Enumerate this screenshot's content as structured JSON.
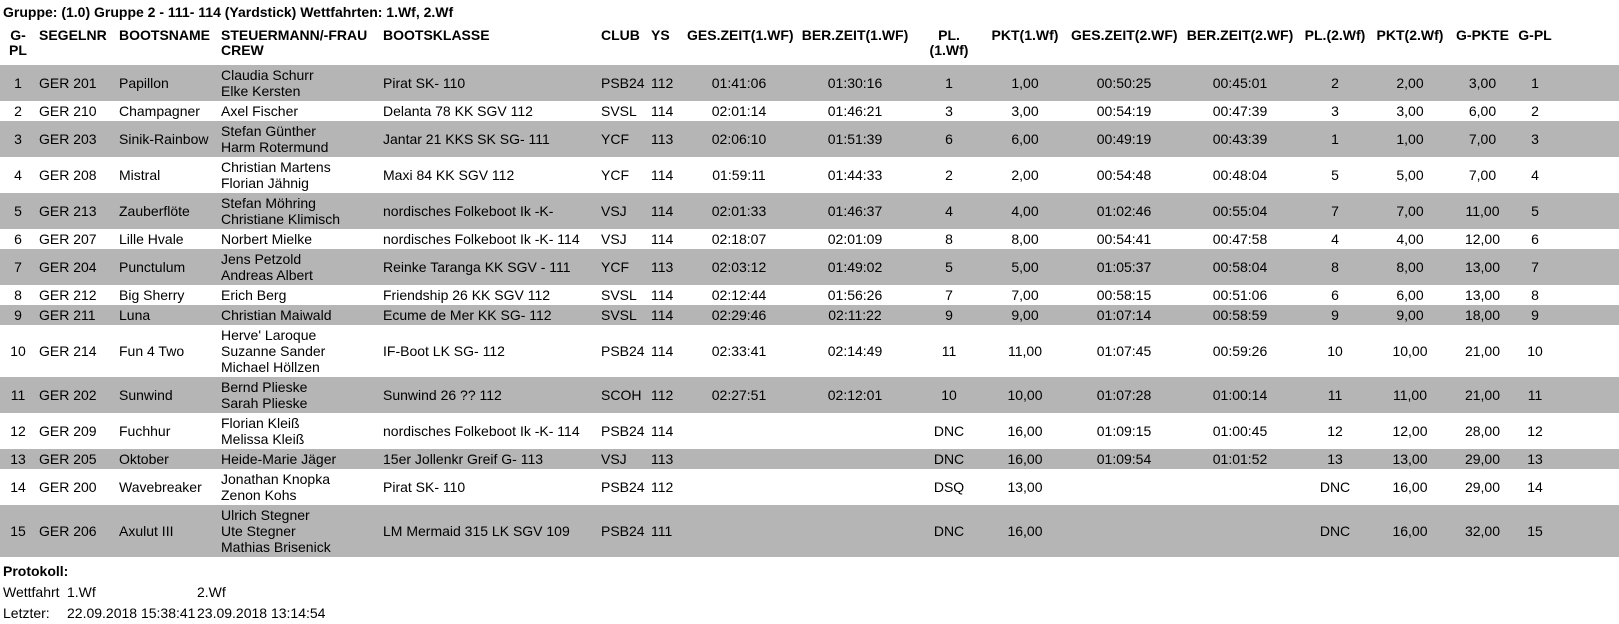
{
  "title": "Gruppe: (1.0) Gruppe 2 - 111- 114 (Yardstick) Wettfahrten: 1.Wf, 2.Wf",
  "colors": {
    "row_alt": "#b5b5b5",
    "row_base": "#ffffff",
    "text": "#000000"
  },
  "results_table": {
    "headers": [
      "G-PL",
      "SEGELNR",
      "BOOTSNAME",
      "STEUERMANN/-FRAU\nCREW",
      "BOOTSKLASSE",
      "CLUB",
      "YS",
      "GES.ZEIT(1.WF)",
      "BER.ZEIT(1.WF)",
      "PL.(1.Wf)",
      "PKT(1.Wf)",
      "GES.ZEIT(2.WF)",
      "BER.ZEIT(2.WF)",
      "PL.(2.Wf)",
      "PKT(2.Wf)",
      "G-PKTE",
      "G-PL"
    ],
    "rows": [
      [
        "1",
        "GER 201",
        "Papillon",
        "Claudia Schurr\nElke Kersten",
        "Pirat SK- 110",
        "PSB24",
        "112",
        "01:41:06",
        "01:30:16",
        "1",
        "1,00",
        "00:50:25",
        "00:45:01",
        "2",
        "2,00",
        "3,00",
        "1"
      ],
      [
        "2",
        "GER 210",
        "Champagner",
        "Axel Fischer",
        "Delanta 78 KK SGV 112",
        "SVSL",
        "114",
        "02:01:14",
        "01:46:21",
        "3",
        "3,00",
        "00:54:19",
        "00:47:39",
        "3",
        "3,00",
        "6,00",
        "2"
      ],
      [
        "3",
        "GER 203",
        "Sinik-Rainbow",
        "Stefan Günther\nHarm Rotermund",
        "Jantar 21 KKS SK SG- 111",
        "YCF",
        "113",
        "02:06:10",
        "01:51:39",
        "6",
        "6,00",
        "00:49:19",
        "00:43:39",
        "1",
        "1,00",
        "7,00",
        "3"
      ],
      [
        "4",
        "GER 208",
        "Mistral",
        "Christian Martens\nFlorian Jähnig",
        "Maxi 84 KK SGV 112",
        "YCF",
        "114",
        "01:59:11",
        "01:44:33",
        "2",
        "2,00",
        "00:54:48",
        "00:48:04",
        "5",
        "5,00",
        "7,00",
        "4"
      ],
      [
        "5",
        "GER 213",
        "Zauberflöte",
        "Stefan Möhring\nChristiane Klimisch",
        "nordisches Folkeboot Ik -K-",
        "VSJ",
        "114",
        "02:01:33",
        "01:46:37",
        "4",
        "4,00",
        "01:02:46",
        "00:55:04",
        "7",
        "7,00",
        "11,00",
        "5"
      ],
      [
        "6",
        "GER 207",
        "Lille Hvale",
        "Norbert Mielke",
        "nordisches Folkeboot Ik -K- 114",
        "VSJ",
        "114",
        "02:18:07",
        "02:01:09",
        "8",
        "8,00",
        "00:54:41",
        "00:47:58",
        "4",
        "4,00",
        "12,00",
        "6"
      ],
      [
        "7",
        "GER 204",
        "Punctulum",
        "Jens Petzold\nAndreas Albert",
        "Reinke Taranga KK SGV - 111",
        "YCF",
        "113",
        "02:03:12",
        "01:49:02",
        "5",
        "5,00",
        "01:05:37",
        "00:58:04",
        "8",
        "8,00",
        "13,00",
        "7"
      ],
      [
        "8",
        "GER 212",
        "Big Sherry",
        "Erich Berg",
        "Friendship 26 KK SGV 112",
        "SVSL",
        "114",
        "02:12:44",
        "01:56:26",
        "7",
        "7,00",
        "00:58:15",
        "00:51:06",
        "6",
        "6,00",
        "13,00",
        "8"
      ],
      [
        "9",
        "GER 211",
        "Luna",
        "Christian Maiwald",
        "Ecume de Mer KK SG- 112",
        "SVSL",
        "114",
        "02:29:46",
        "02:11:22",
        "9",
        "9,00",
        "01:07:14",
        "00:58:59",
        "9",
        "9,00",
        "18,00",
        "9"
      ],
      [
        "10",
        "GER 214",
        "Fun 4 Two",
        "Herve' Laroque\nSuzanne Sander\nMichael Höllzen",
        "IF-Boot LK SG- 112",
        "PSB24",
        "114",
        "02:33:41",
        "02:14:49",
        "11",
        "11,00",
        "01:07:45",
        "00:59:26",
        "10",
        "10,00",
        "21,00",
        "10"
      ],
      [
        "11",
        "GER 202",
        "Sunwind",
        "Bernd Plieske\nSarah Plieske",
        "Sunwind 26 ?? 112",
        "SCOH",
        "112",
        "02:27:51",
        "02:12:01",
        "10",
        "10,00",
        "01:07:28",
        "01:00:14",
        "11",
        "11,00",
        "21,00",
        "11"
      ],
      [
        "12",
        "GER 209",
        "Fuchhur",
        "Florian Kleiß\nMelissa Kleiß",
        "nordisches Folkeboot Ik -K- 114",
        "PSB24",
        "114",
        "",
        "",
        "DNC",
        "16,00",
        "01:09:15",
        "01:00:45",
        "12",
        "12,00",
        "28,00",
        "12"
      ],
      [
        "13",
        "GER 205",
        "Oktober",
        "Heide-Marie Jäger",
        "15er Jollenkr Greif G- 113",
        "VSJ",
        "113",
        "",
        "",
        "DNC",
        "16,00",
        "01:09:54",
        "01:01:52",
        "13",
        "13,00",
        "29,00",
        "13"
      ],
      [
        "14",
        "GER 200",
        "Wavebreaker",
        "Jonathan Knopka\nZenon Kohs",
        "Pirat SK- 110",
        "PSB24",
        "112",
        "",
        "",
        "DSQ",
        "13,00",
        "",
        "",
        "DNC",
        "16,00",
        "29,00",
        "14"
      ],
      [
        "15",
        "GER 206",
        "Axulut III",
        "Ulrich Stegner\nUte Stegner\nMathias Brisenick",
        "LM Mermaid 315 LK SGV 109",
        "PSB24",
        "111",
        "",
        "",
        "DNC",
        "16,00",
        "",
        "",
        "DNC",
        "16,00",
        "32,00",
        "15"
      ]
    ]
  },
  "protokoll": {
    "heading": "Protokoll:",
    "rows": [
      [
        "Wettfahrt",
        "1.Wf",
        "2.Wf"
      ],
      [
        "Letzter:",
        "22.09.2018 15:38:41",
        "23.09.2018 13:14:54"
      ]
    ]
  }
}
